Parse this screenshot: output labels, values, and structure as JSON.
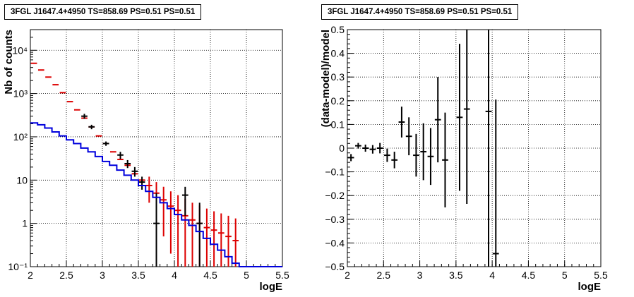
{
  "chart_data": [
    {
      "type": "line",
      "title": "3FGL J1647.4+4950 TS=858.69 PS=0.51 PS=0.51",
      "xlabel": "logE",
      "ylabel": "Nb of counts",
      "xlim": [
        2,
        5.5
      ],
      "ylim": [
        0.1,
        30000
      ],
      "yscale": "log",
      "grid": true,
      "x_ticks": [
        "2",
        "2.5",
        "3",
        "3.5",
        "4",
        "4.5",
        "5",
        "5.5"
      ],
      "y_ticks": [
        "10⁻¹",
        "1",
        "10",
        "10²",
        "10³",
        "10⁴"
      ],
      "series": [
        {
          "color": "#dd0000",
          "style": "errorbars",
          "x": [
            2.05,
            2.15,
            2.25,
            2.35,
            2.45,
            2.55,
            2.65,
            2.75,
            2.85,
            2.95,
            3.05,
            3.15,
            3.25,
            3.35,
            3.45,
            3.55,
            3.65,
            3.75,
            3.85,
            3.95,
            4.05,
            4.15,
            4.25,
            4.35,
            4.45,
            4.55,
            4.65,
            4.75,
            4.85
          ],
          "y": [
            5000,
            3500,
            2400,
            1600,
            1050,
            650,
            420,
            270,
            170,
            105,
            70,
            45,
            30,
            22,
            14,
            10,
            7.5,
            5,
            3.5,
            2.5,
            2,
            1.5,
            1.2,
            1,
            0.8,
            0.7,
            0.6,
            0.5,
            0.4
          ],
          "yerr_low": [
            0,
            0,
            0,
            0,
            0,
            0,
            0,
            0,
            0,
            0,
            0,
            0,
            0,
            0,
            0,
            0,
            4.5,
            3.5,
            3,
            2.3,
            1.9,
            1.45,
            1.17,
            0.98,
            0.78,
            0.69,
            0.59,
            0.49,
            0.39
          ],
          "yerr_high": [
            0,
            0,
            0,
            0,
            0,
            0,
            0,
            0,
            0,
            0,
            0,
            0,
            0,
            0,
            0,
            0,
            4.5,
            4,
            3.5,
            3,
            2.5,
            2.2,
            1.8,
            1.6,
            1.4,
            1.2,
            1.1,
            1.0,
            0.9
          ]
        },
        {
          "color": "#000000",
          "style": "errorbars",
          "x": [
            2.75,
            2.85,
            3.05,
            3.25,
            3.35,
            3.45,
            3.55,
            3.75,
            4.15,
            4.35
          ],
          "y": [
            300,
            170,
            70,
            38,
            24,
            16,
            9,
            1,
            4.5,
            1
          ],
          "yerr_low": [
            40,
            20,
            8,
            7,
            5,
            4,
            3,
            0.9,
            3,
            0.9
          ],
          "yerr_high": [
            40,
            20,
            8,
            7,
            5,
            4,
            3,
            4,
            2.5,
            2
          ]
        },
        {
          "color": "#0000dd",
          "style": "step",
          "x": [
            2.05,
            2.15,
            2.25,
            2.35,
            2.45,
            2.55,
            2.65,
            2.75,
            2.85,
            2.95,
            3.05,
            3.15,
            3.25,
            3.35,
            3.45,
            3.55,
            3.65,
            3.75,
            3.85,
            3.95,
            4.05,
            4.15,
            4.25,
            4.35,
            4.45,
            4.55,
            4.65,
            4.75,
            4.85,
            4.95,
            5.05,
            5.15,
            5.25,
            5.35,
            5.45
          ],
          "y": [
            210,
            190,
            160,
            130,
            105,
            85,
            70,
            55,
            45,
            35,
            27,
            22,
            17,
            13,
            10,
            7.5,
            5.5,
            4,
            3,
            2.2,
            1.6,
            1.2,
            0.9,
            0.65,
            0.45,
            0.33,
            0.24,
            0.17,
            0.12,
            0.1,
            0.1,
            0.1,
            0.1,
            0.1,
            0.1
          ]
        }
      ]
    },
    {
      "type": "scatter",
      "title": "3FGL J1647.4+4950 TS=858.69 PS=0.51 PS=0.51",
      "xlabel": "logE",
      "ylabel": "(data-model)/model",
      "xlim": [
        2,
        5.5
      ],
      "ylim": [
        -0.5,
        0.5
      ],
      "grid": true,
      "x_ticks": [
        "2",
        "2.5",
        "3",
        "3.5",
        "4",
        "4.5",
        "5",
        "5.5"
      ],
      "y_ticks": [
        "−0.5",
        "−0.4",
        "−0.3",
        "−0.2",
        "−0.1",
        "0",
        "0.1",
        "0.2",
        "0.3",
        "0.4",
        "0.5"
      ],
      "series": [
        {
          "color": "#000000",
          "style": "errorbars",
          "x": [
            2.05,
            2.15,
            2.25,
            2.35,
            2.45,
            2.55,
            2.65,
            2.75,
            2.85,
            2.95,
            3.05,
            3.15,
            3.25,
            3.35,
            3.55,
            3.65,
            3.95,
            4.05
          ],
          "y": [
            -0.04,
            0.01,
            0.0,
            -0.005,
            0.0,
            -0.03,
            -0.05,
            0.11,
            0.05,
            -0.03,
            -0.015,
            -0.035,
            0.12,
            -0.05,
            0.13,
            0.165,
            0.155,
            -0.445
          ],
          "yerr": [
            0.015,
            0.012,
            0.015,
            0.018,
            0.022,
            0.028,
            0.035,
            0.065,
            0.08,
            0.09,
            0.12,
            0.12,
            0.18,
            0.2,
            0.31,
            0.4,
            0.7,
            0.65
          ]
        }
      ]
    }
  ]
}
